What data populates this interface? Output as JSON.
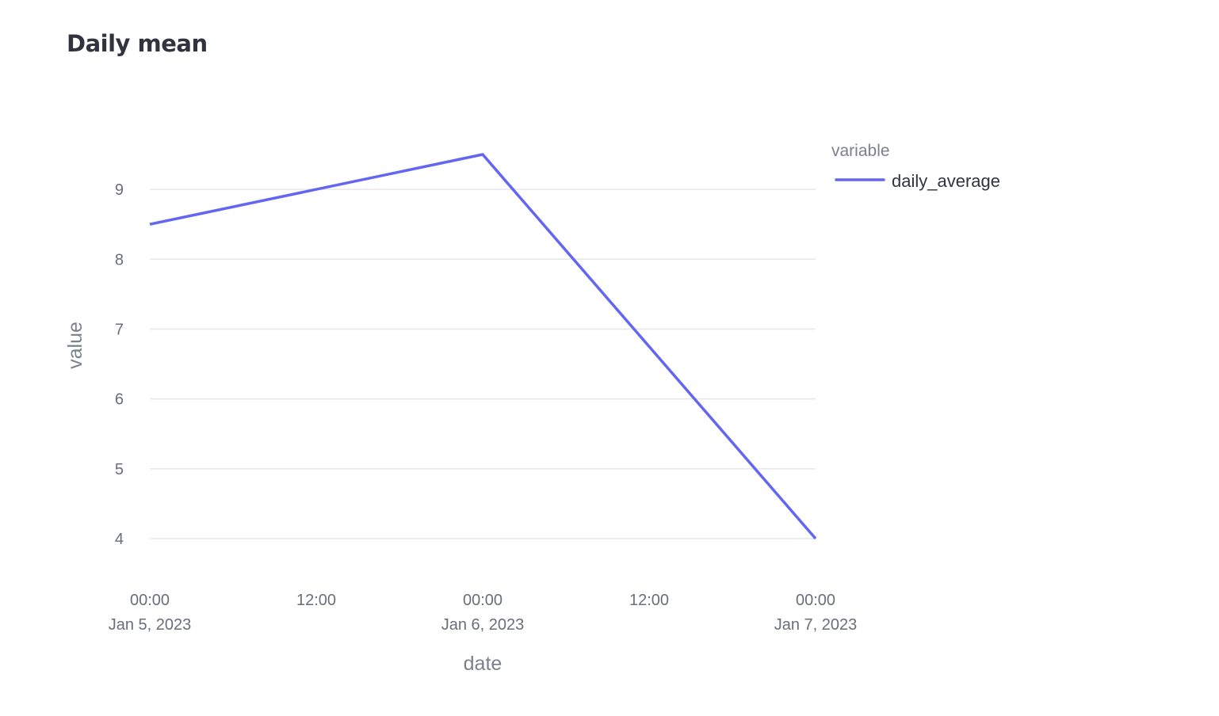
{
  "chart_data": {
    "type": "line",
    "title": "Daily mean",
    "xlabel": "date",
    "ylabel": "value",
    "x": [
      "2023-01-05T00:00",
      "2023-01-06T00:00",
      "2023-01-07T00:00"
    ],
    "series": [
      {
        "name": "daily_average",
        "values": [
          8.5,
          9.5,
          4.0
        ],
        "color": "#6366f1"
      }
    ],
    "xlim": [
      "2023-01-05T00:00",
      "2023-01-07T00:00"
    ],
    "ylim": [
      4,
      9.5
    ],
    "y_ticks": [
      4,
      5,
      6,
      7,
      8,
      9
    ],
    "x_ticks": [
      {
        "time": "00:00",
        "date": "Jan 5, 2023"
      },
      {
        "time": "12:00",
        "date": ""
      },
      {
        "time": "00:00",
        "date": "Jan 6, 2023"
      },
      {
        "time": "12:00",
        "date": ""
      },
      {
        "time": "00:00",
        "date": "Jan 7, 2023"
      }
    ],
    "legend": {
      "title": "variable",
      "position": "top-right"
    },
    "grid": true,
    "gridline_color": "#e6e7ea"
  }
}
